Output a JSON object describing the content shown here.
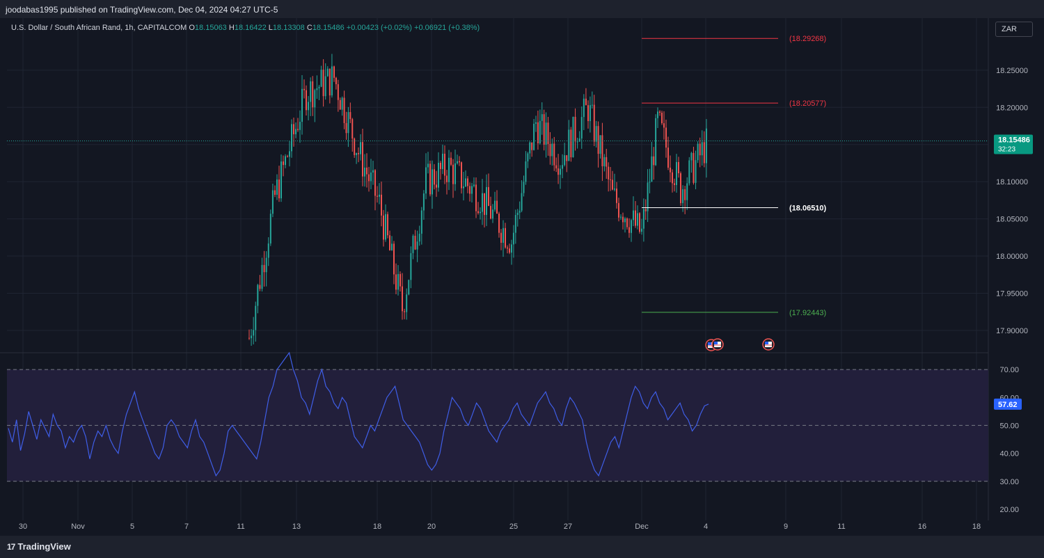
{
  "header": {
    "published": "joodabas1995 published on TradingView.com, Dec 04, 2024 04:27 UTC-5"
  },
  "legend": {
    "symbol": "U.S. Dollar / South African Rand, 1h, CAPITALCOM",
    "o_label": "O",
    "o": "18.15063",
    "h_label": "H",
    "h": "18.16422",
    "l_label": "L",
    "l": "18.13308",
    "c_label": "C",
    "c": "18.15486",
    "change": "+0.00423 (+0.02%)",
    "change2": "+0.06921 (+0.38%)"
  },
  "currency_button": "ZAR",
  "footer": {
    "brand": "TradingView",
    "logo_glyph": "17"
  },
  "colors": {
    "background": "#131722",
    "up": "#26a69a",
    "down": "#ef5350",
    "rsi_line": "#3f5ee8",
    "rsi_band": "#221f3b",
    "level_red": "#f23645",
    "level_green": "#4caf50",
    "level_white": "#ffffff",
    "price_tag": "#089981",
    "rsi_tag": "#2962ff"
  },
  "chart_data": [
    {
      "type": "candlestick",
      "title": "U.S. Dollar / South African Rand, 1h, CAPITALCOM",
      "timeframe": "1h",
      "ylim": [
        17.87,
        18.32
      ],
      "y_ticks": [
        "18.25000",
        "18.20000",
        "18.15000",
        "18.10000",
        "18.05000",
        "18.00000",
        "17.95000",
        "17.90000"
      ],
      "x_ticks": [
        "30",
        "Nov",
        "5",
        "7",
        "11",
        "13",
        "18",
        "20",
        "25",
        "27",
        "Dec",
        "4",
        "9",
        "11",
        "16",
        "18"
      ],
      "last_price": "18.15486",
      "countdown": "32:23",
      "approx_closes": [
        {
          "date": "Nov 11",
          "close": 17.89
        },
        {
          "date": "Nov 12",
          "close": 18.08
        },
        {
          "date": "Nov 13",
          "close": 18.22
        },
        {
          "date": "Nov 14",
          "close": 18.24
        },
        {
          "date": "Nov 15",
          "close": 18.14
        },
        {
          "date": "Nov 18",
          "close": 18.07
        },
        {
          "date": "Nov 19",
          "close": 17.93
        },
        {
          "date": "Nov 20",
          "close": 18.1
        },
        {
          "date": "Nov 21",
          "close": 18.12
        },
        {
          "date": "Nov 22",
          "close": 18.08
        },
        {
          "date": "Nov 25",
          "close": 18.02
        },
        {
          "date": "Nov 26",
          "close": 18.18
        },
        {
          "date": "Nov 27",
          "close": 18.13
        },
        {
          "date": "Nov 28",
          "close": 18.2
        },
        {
          "date": "Nov 29",
          "close": 18.08
        },
        {
          "date": "Dec 1",
          "close": 18.03
        },
        {
          "date": "Dec 2",
          "close": 18.18
        },
        {
          "date": "Dec 3",
          "close": 18.09
        },
        {
          "date": "Dec 4",
          "close": 18.155
        }
      ],
      "levels": [
        {
          "value": 18.29268,
          "label": "(18.29268)",
          "color": "level_red"
        },
        {
          "value": 18.20577,
          "label": "(18.20577)",
          "color": "level_red"
        },
        {
          "value": 18.0651,
          "label": "(18.06510)",
          "color": "level_white"
        },
        {
          "value": 17.92443,
          "label": "(17.92443)",
          "color": "level_green"
        }
      ]
    },
    {
      "type": "line",
      "title": "",
      "ylim": [
        16,
        76
      ],
      "y_ticks": [
        "70.00",
        "60.00",
        "50.00",
        "40.00",
        "30.00",
        "20.00"
      ],
      "bands": [
        30,
        50,
        70
      ],
      "last_value": "57.62",
      "series": [
        {
          "values": [
            49,
            44,
            52,
            41,
            47,
            55,
            50,
            45,
            52,
            49,
            46,
            54,
            50,
            48,
            42,
            46,
            44,
            48,
            50,
            46,
            38,
            44,
            48,
            46,
            50,
            45,
            42,
            40,
            48,
            54,
            58,
            62,
            56,
            52,
            48,
            44,
            40,
            38,
            42,
            50,
            52,
            50,
            46,
            44,
            42,
            48,
            52,
            46,
            44,
            40,
            36,
            32,
            34,
            40,
            48,
            50,
            48,
            46,
            44,
            42,
            40,
            38,
            44,
            52,
            60,
            64,
            70,
            72,
            74,
            76,
            70,
            66,
            60,
            58,
            54,
            60,
            66,
            70,
            64,
            62,
            58,
            56,
            60,
            58,
            52,
            46,
            44,
            42,
            46,
            50,
            48,
            52,
            56,
            60,
            62,
            64,
            58,
            52,
            50,
            48,
            46,
            44,
            40,
            36,
            34,
            36,
            40,
            48,
            54,
            60,
            58,
            56,
            52,
            50,
            54,
            58,
            56,
            52,
            48,
            46,
            44,
            48,
            50,
            52,
            56,
            58,
            54,
            52,
            50,
            54,
            58,
            60,
            62,
            58,
            56,
            52,
            50,
            56,
            60,
            58,
            55,
            52,
            44,
            38,
            34,
            32,
            36,
            40,
            44,
            46,
            42,
            48,
            54,
            60,
            64,
            62,
            58,
            56,
            60,
            62,
            58,
            56,
            52,
            54,
            56,
            58,
            54,
            52,
            48,
            50,
            54,
            57,
            57.62
          ]
        }
      ]
    }
  ]
}
